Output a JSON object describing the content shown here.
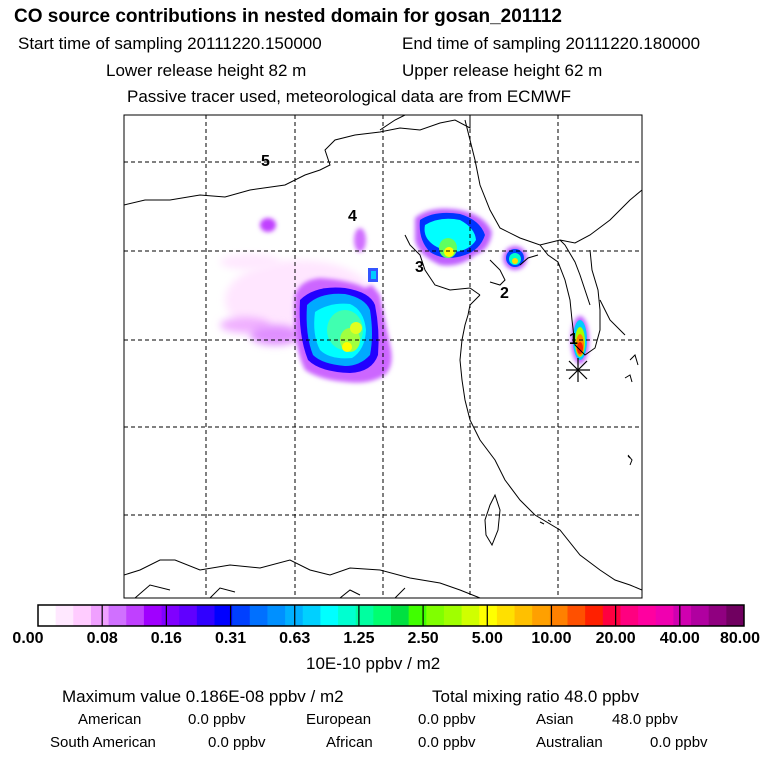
{
  "header": {
    "title": "CO  source contributions in nested domain for gosan_201112",
    "start_label": "Start time of sampling 20111220.150000",
    "end_label": "End time of sampling 20111220.180000",
    "lower_label": "Lower release height   82 m",
    "upper_label": "Upper release height   62 m",
    "tracer_label": "Passive tracer used, meteorological data are from ECMWF"
  },
  "map": {
    "markers": [
      {
        "label": "1",
        "pos": "near release point"
      },
      {
        "label": "2"
      },
      {
        "label": "3"
      },
      {
        "label": "4"
      },
      {
        "label": "5"
      }
    ],
    "release_symbol": "asterisk-icon"
  },
  "colorbar": {
    "tick_labels": [
      "0.00",
      "0.08",
      "0.16",
      "0.31",
      "0.63",
      "1.25",
      "2.50",
      "5.00",
      "10.00",
      "20.00",
      "40.00",
      "80.00"
    ],
    "unit_label": "10E-10 ppbv / m2",
    "colors": [
      "#ffffff",
      "#ffe8ff",
      "#ffccff",
      "#f0a0ff",
      "#d070ff",
      "#c040ff",
      "#a000ff",
      "#8000ff",
      "#6000ff",
      "#3000ff",
      "#0000ff",
      "#0040ff",
      "#0070ff",
      "#0090ff",
      "#00b0ff",
      "#00d0ff",
      "#00ffff",
      "#00ffd0",
      "#00ffa0",
      "#00ff70",
      "#00e040",
      "#40ff00",
      "#80ff00",
      "#a0ff00",
      "#d0ff00",
      "#ffff00",
      "#ffe000",
      "#ffc000",
      "#ffa000",
      "#ff8000",
      "#ff5000",
      "#ff2000",
      "#ff0040",
      "#ff0080",
      "#ff00a0",
      "#f000b0",
      "#d000b0",
      "#b000a0",
      "#900080",
      "#700060"
    ]
  },
  "summary": {
    "max_value": "Maximum value  0.186E-08 ppbv / m2",
    "total_mixing": "Total mixing ratio      48.0 ppbv",
    "american_label": "American",
    "american_value": "0.0 ppbv",
    "european_label": "European",
    "european_value": "0.0 ppbv",
    "asian_label": "Asian",
    "asian_value": "48.0 ppbv",
    "south_american_label": "South American",
    "south_american_value": "0.0 ppbv",
    "african_label": "African",
    "african_value": "0.0 ppbv",
    "australian_label": "Australian",
    "australian_value": "0.0 ppbv"
  }
}
